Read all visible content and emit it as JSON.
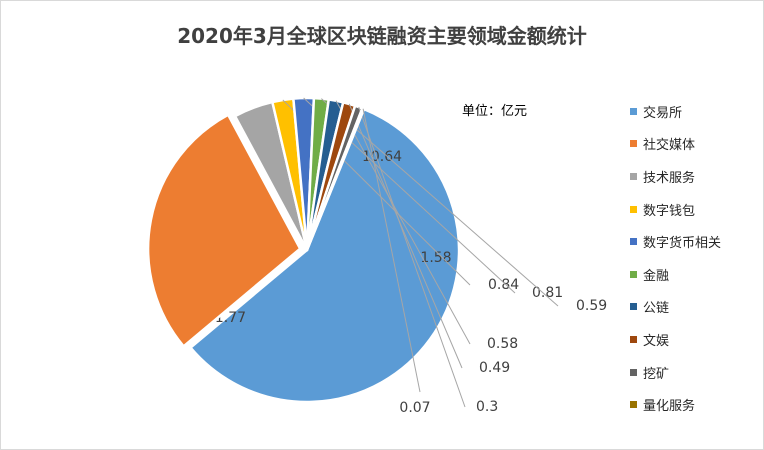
{
  "chart_data": {
    "type": "pie",
    "title": "2020年3月全球区块链融资主要领域金额统计",
    "unit_label": "单位：亿元",
    "legend_position": "right",
    "slices": [
      {
        "name": "交易所",
        "value": 21.77,
        "label": "21.77",
        "color": "#5b9bd5"
      },
      {
        "name": "社交媒体",
        "value": 10.64,
        "label": "10.64",
        "color": "#ed7d31"
      },
      {
        "name": "技术服务",
        "value": 1.58,
        "label": "1.58",
        "color": "#a5a5a5"
      },
      {
        "name": "数字钱包",
        "value": 0.84,
        "label": "0.84",
        "color": "#ffc000"
      },
      {
        "name": "数字货币相关",
        "value": 0.81,
        "label": "0.81",
        "color": "#4472c4"
      },
      {
        "name": "金融",
        "value": 0.59,
        "label": "0.59",
        "color": "#70ad47"
      },
      {
        "name": "公链",
        "value": 0.58,
        "label": "0.58",
        "color": "#255e91"
      },
      {
        "name": "文娱",
        "value": 0.49,
        "label": "0.49",
        "color": "#9e480e"
      },
      {
        "name": "挖矿",
        "value": 0.3,
        "label": "0.3",
        "color": "#636363"
      },
      {
        "name": "量化服务",
        "value": 0.07,
        "label": "0.07",
        "color": "#997300"
      }
    ]
  }
}
